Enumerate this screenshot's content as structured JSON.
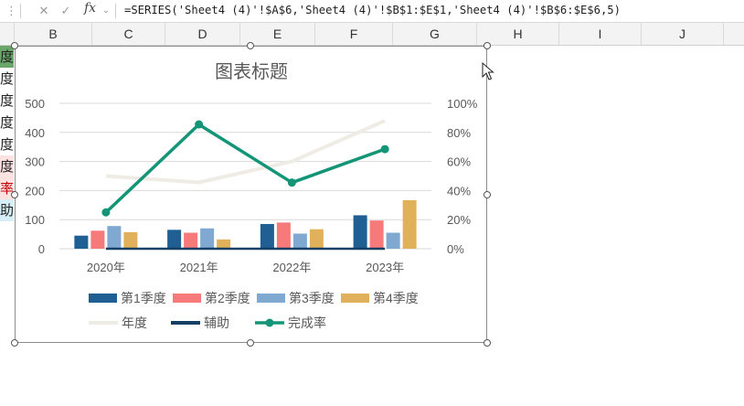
{
  "formula_bar": {
    "cancel_icon": "close-icon",
    "confirm_icon": "check-icon",
    "fx_label": "fx",
    "formula": "=SERIES('Sheet4 (4)'!$A$6,'Sheet4 (4)'!$B$1:$E$1,'Sheet4 (4)'!$B$6:$E$6,5)"
  },
  "columns": [
    "B",
    "C",
    "D",
    "E",
    "F",
    "G",
    "H",
    "I",
    "J"
  ],
  "left_cells": [
    {
      "text": "度",
      "bg": "#6aa66a"
    },
    {
      "text": "度",
      "bg": "#ffffff"
    },
    {
      "text": "度",
      "bg": "#ffffff"
    },
    {
      "text": "度",
      "bg": "#ffffff"
    },
    {
      "text": "度",
      "bg": "#ffffff"
    },
    {
      "text": "度",
      "bg": "#fde2e2"
    },
    {
      "text": "率",
      "bg": "#fde2e2"
    },
    {
      "text": "助",
      "bg": "#d6eef8"
    }
  ],
  "chart_data": {
    "type": "bar",
    "title": "图表标题",
    "categories": [
      "2020年",
      "2021年",
      "2022年",
      "2023年"
    ],
    "y_left": {
      "min": 0,
      "max": 500,
      "ticks": [
        "0",
        "100",
        "200",
        "300",
        "400",
        "500"
      ]
    },
    "y_right": {
      "min": 0,
      "max": 1,
      "ticks": [
        "0%",
        "20%",
        "40%",
        "60%",
        "80%",
        "100%"
      ]
    },
    "grid": true,
    "legend_position": "bottom",
    "bar_series": [
      {
        "name": "第1季度",
        "values": [
          45,
          65,
          85,
          115
        ],
        "color": "#1f5f93"
      },
      {
        "name": "第2季度",
        "values": [
          62,
          55,
          90,
          97
        ],
        "color": "#f77a7a"
      },
      {
        "name": "第3季度",
        "values": [
          78,
          70,
          52,
          55
        ],
        "color": "#80a9d2"
      },
      {
        "name": "第4季度",
        "values": [
          57,
          32,
          67,
          167
        ],
        "color": "#e1b05a"
      }
    ],
    "line_series": [
      {
        "name": "年度",
        "values": [
          250,
          228,
          300,
          440
        ],
        "axis": "left",
        "color": "#eeece5",
        "marker": false
      },
      {
        "name": "辅助",
        "values": [
          0,
          0,
          0,
          0
        ],
        "axis": "left",
        "color": "#153f63",
        "marker": false
      },
      {
        "name": "完成率",
        "values": [
          0.25,
          0.855,
          0.455,
          0.685
        ],
        "axis": "right",
        "color": "#149577",
        "marker": true
      }
    ]
  }
}
